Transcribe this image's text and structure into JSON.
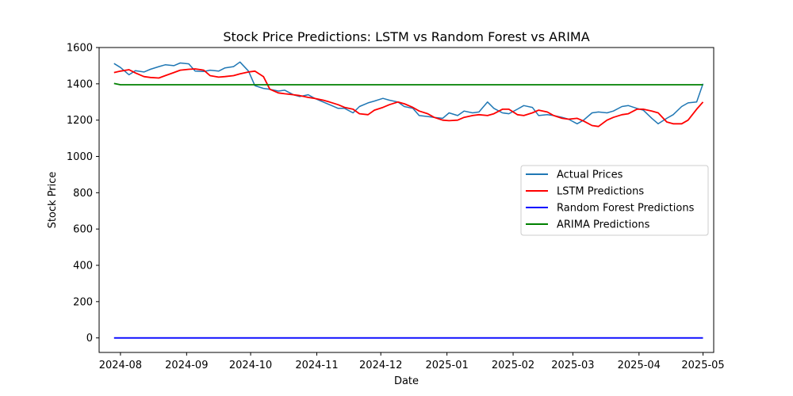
{
  "chart_data": {
    "type": "line",
    "title": "Stock Price Predictions: LSTM vs Random Forest vs ARIMA",
    "xlabel": "Date",
    "ylabel": "Stock Price",
    "ylim": [
      -80,
      1600
    ],
    "xlim": [
      "2024-07-22",
      "2025-05-06"
    ],
    "grid": false,
    "legend_position": "center-right",
    "x_ticks": [
      "2024-08",
      "2024-09",
      "2024-10",
      "2024-11",
      "2024-12",
      "2025-01",
      "2025-02",
      "2025-03",
      "2025-04",
      "2025-05"
    ],
    "y_ticks": [
      0,
      200,
      400,
      600,
      800,
      1000,
      1200,
      1400,
      1600
    ],
    "series": [
      {
        "name": "Actual Prices",
        "color": "#1f77b4",
        "x": [
          "2024-07-29",
          "2024-08-01",
          "2024-08-05",
          "2024-08-08",
          "2024-08-12",
          "2024-08-15",
          "2024-08-19",
          "2024-08-22",
          "2024-08-26",
          "2024-08-29",
          "2024-09-02",
          "2024-09-05",
          "2024-09-09",
          "2024-09-12",
          "2024-09-16",
          "2024-09-19",
          "2024-09-23",
          "2024-09-26",
          "2024-09-30",
          "2024-10-03",
          "2024-10-07",
          "2024-10-10",
          "2024-10-14",
          "2024-10-17",
          "2024-10-21",
          "2024-10-24",
          "2024-10-28",
          "2024-10-31",
          "2024-11-04",
          "2024-11-07",
          "2024-11-11",
          "2024-11-14",
          "2024-11-18",
          "2024-11-21",
          "2024-11-25",
          "2024-11-28",
          "2024-12-02",
          "2024-12-05",
          "2024-12-09",
          "2024-12-12",
          "2024-12-16",
          "2024-12-19",
          "2024-12-23",
          "2024-12-26",
          "2024-12-30",
          "2025-01-02",
          "2025-01-06",
          "2025-01-09",
          "2025-01-13",
          "2025-01-16",
          "2025-01-20",
          "2025-01-23",
          "2025-01-27",
          "2025-01-30",
          "2025-02-03",
          "2025-02-06",
          "2025-02-10",
          "2025-02-13",
          "2025-02-17",
          "2025-02-20",
          "2025-02-24",
          "2025-02-27",
          "2025-03-03",
          "2025-03-06",
          "2025-03-10",
          "2025-03-13",
          "2025-03-17",
          "2025-03-20",
          "2025-03-24",
          "2025-03-27",
          "2025-03-31",
          "2025-04-03",
          "2025-04-07",
          "2025-04-10",
          "2025-04-14",
          "2025-04-17",
          "2025-04-21",
          "2025-04-24",
          "2025-04-28",
          "2025-05-01"
        ],
        "values": [
          1512,
          1490,
          1450,
          1472,
          1465,
          1480,
          1495,
          1505,
          1500,
          1515,
          1510,
          1470,
          1468,
          1475,
          1470,
          1488,
          1495,
          1520,
          1470,
          1390,
          1375,
          1370,
          1360,
          1365,
          1340,
          1330,
          1340,
          1320,
          1300,
          1285,
          1265,
          1265,
          1240,
          1275,
          1295,
          1305,
          1320,
          1310,
          1300,
          1275,
          1265,
          1225,
          1220,
          1215,
          1210,
          1240,
          1225,
          1250,
          1240,
          1245,
          1300,
          1265,
          1240,
          1235,
          1260,
          1280,
          1270,
          1225,
          1230,
          1225,
          1215,
          1205,
          1180,
          1200,
          1240,
          1245,
          1240,
          1250,
          1275,
          1280,
          1265,
          1255,
          1210,
          1180,
          1210,
          1230,
          1275,
          1295,
          1300,
          1400
        ]
      },
      {
        "name": "LSTM Predictions",
        "color": "#ff0000",
        "x": [
          "2024-07-29",
          "2024-08-01",
          "2024-08-05",
          "2024-08-08",
          "2024-08-12",
          "2024-08-15",
          "2024-08-19",
          "2024-08-22",
          "2024-08-26",
          "2024-08-29",
          "2024-09-02",
          "2024-09-05",
          "2024-09-09",
          "2024-09-12",
          "2024-09-16",
          "2024-09-19",
          "2024-09-23",
          "2024-09-26",
          "2024-09-30",
          "2024-10-03",
          "2024-10-07",
          "2024-10-10",
          "2024-10-14",
          "2024-10-17",
          "2024-10-21",
          "2024-10-24",
          "2024-10-28",
          "2024-10-31",
          "2024-11-04",
          "2024-11-07",
          "2024-11-11",
          "2024-11-14",
          "2024-11-18",
          "2024-11-21",
          "2024-11-25",
          "2024-11-28",
          "2024-12-02",
          "2024-12-05",
          "2024-12-09",
          "2024-12-12",
          "2024-12-16",
          "2024-12-19",
          "2024-12-23",
          "2024-12-26",
          "2024-12-30",
          "2025-01-02",
          "2025-01-06",
          "2025-01-09",
          "2025-01-13",
          "2025-01-16",
          "2025-01-20",
          "2025-01-23",
          "2025-01-27",
          "2025-01-30",
          "2025-02-03",
          "2025-02-06",
          "2025-02-10",
          "2025-02-13",
          "2025-02-17",
          "2025-02-20",
          "2025-02-24",
          "2025-02-27",
          "2025-03-03",
          "2025-03-06",
          "2025-03-10",
          "2025-03-13",
          "2025-03-17",
          "2025-03-20",
          "2025-03-24",
          "2025-03-27",
          "2025-03-31",
          "2025-04-03",
          "2025-04-07",
          "2025-04-10",
          "2025-04-14",
          "2025-04-17",
          "2025-04-21",
          "2025-04-24",
          "2025-04-28",
          "2025-05-01"
        ],
        "values": [
          1462,
          1470,
          1478,
          1460,
          1440,
          1435,
          1432,
          1445,
          1462,
          1475,
          1480,
          1482,
          1475,
          1445,
          1437,
          1440,
          1445,
          1455,
          1465,
          1470,
          1440,
          1370,
          1350,
          1345,
          1340,
          1335,
          1325,
          1320,
          1310,
          1300,
          1285,
          1270,
          1260,
          1235,
          1230,
          1255,
          1270,
          1285,
          1300,
          1290,
          1270,
          1250,
          1235,
          1215,
          1200,
          1197,
          1200,
          1215,
          1225,
          1230,
          1225,
          1235,
          1260,
          1260,
          1230,
          1225,
          1240,
          1255,
          1245,
          1225,
          1210,
          1205,
          1210,
          1195,
          1170,
          1165,
          1200,
          1215,
          1230,
          1235,
          1260,
          1260,
          1250,
          1240,
          1190,
          1180,
          1180,
          1200,
          1260,
          1300
        ]
      },
      {
        "name": "Random Forest Predictions",
        "color": "#0000ff",
        "x": [
          "2024-07-29",
          "2025-05-01"
        ],
        "values": [
          0,
          0
        ]
      },
      {
        "name": "ARIMA Predictions",
        "color": "#008000",
        "x": [
          "2024-07-29",
          "2024-08-01",
          "2025-05-01"
        ],
        "values": [
          1402,
          1395,
          1395
        ]
      }
    ]
  }
}
